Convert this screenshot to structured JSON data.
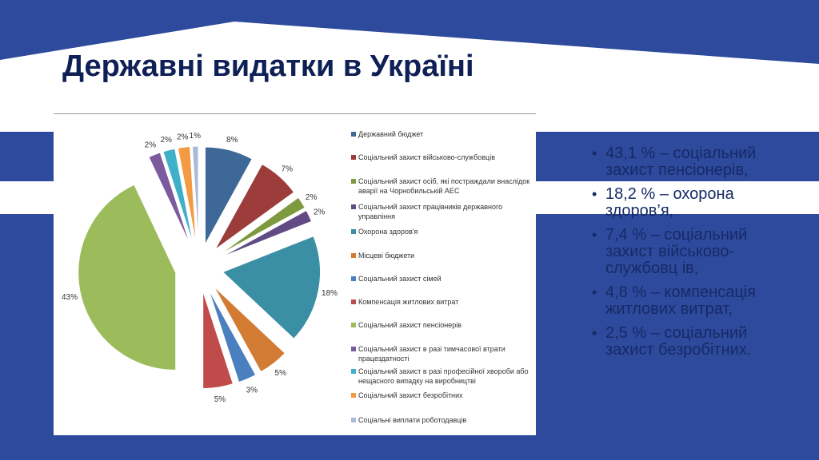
{
  "title": "Державні видатки в Україні",
  "colors": {
    "background_blue": "#2d4a9c",
    "title": "#0f2057",
    "bullet_text": "#172a66"
  },
  "chart_data": {
    "type": "pie",
    "exploded": true,
    "legend_position": "right",
    "unit": "%",
    "categories": [
      "Державний бюджет",
      "Соціальний захист військово-службовців",
      "Соціальний захист осіб, які постраждали внаслідок аварії на Чорнобильській АЕС",
      "Соціальний захист працівників державного управління",
      "Охорона здоров'я",
      "Місцеві бюджети",
      "Соціальний захист сімей",
      "Компенсація житлових витрат",
      "Соціальний захист пенсіонерів",
      "Соціальний захист в разі тимчасової втрати працездатності",
      "Соціальний захист в разі професійної хвороби або нещасного випадку на виробництві",
      "Соціальний захист безробітних",
      "Соціальні виплати роботодавців"
    ],
    "values": [
      8,
      7,
      2,
      2,
      18,
      5,
      3,
      5,
      43,
      2,
      2,
      2,
      1
    ],
    "labels": [
      "8%",
      "7%",
      "2%",
      "2%",
      "18%",
      "5%",
      "3%",
      "5%",
      "43%",
      "2%",
      "2%",
      "2%",
      "1%"
    ],
    "colors": [
      "#3e6898",
      "#9c3d3b",
      "#7d9a3f",
      "#624a85",
      "#3a8fa5",
      "#d27b33",
      "#4a7fc0",
      "#c04b4b",
      "#9cbb5a",
      "#7b5a9e",
      "#3fb0c8",
      "#f39a45",
      "#aabbd8"
    ]
  },
  "bullets": [
    "43,1 % – соціальний захист пенсіонерів,",
    "18,2 % – охорона здоров’я,",
    "7,4 % – соціальний захист військово-службовц ів,",
    "4,8 % – компенсація житлових витрат,",
    "2,5 % – соціальний захист безробітних."
  ]
}
